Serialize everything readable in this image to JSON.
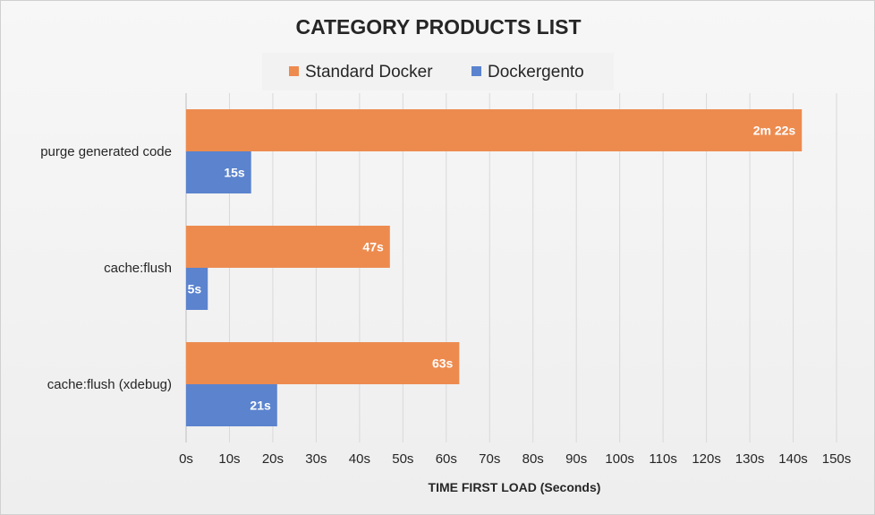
{
  "chart_data": {
    "type": "bar",
    "orientation": "horizontal",
    "title": "CATEGORY PRODUCTS LIST",
    "xlabel": "TIME FIRST LOAD (Seconds)",
    "ylabel": "",
    "xlim": [
      0,
      150
    ],
    "x_ticks": [
      "0s",
      "10s",
      "20s",
      "30s",
      "40s",
      "50s",
      "60s",
      "70s",
      "80s",
      "90s",
      "100s",
      "110s",
      "120s",
      "130s",
      "140s",
      "150s"
    ],
    "grid": true,
    "legend_position": "top",
    "categories": [
      "purge generated code",
      "cache:flush",
      "cache:flush (xdebug)"
    ],
    "series": [
      {
        "name": "Standard Docker",
        "color": "#ed8b4f",
        "values": [
          142,
          47,
          63
        ],
        "labels": [
          "2m 22s",
          "47s",
          "63s"
        ]
      },
      {
        "name": "Dockergento",
        "color": "#5b83ce",
        "values": [
          15,
          5,
          21
        ],
        "labels": [
          "15s",
          "5s",
          "21s"
        ]
      }
    ]
  }
}
